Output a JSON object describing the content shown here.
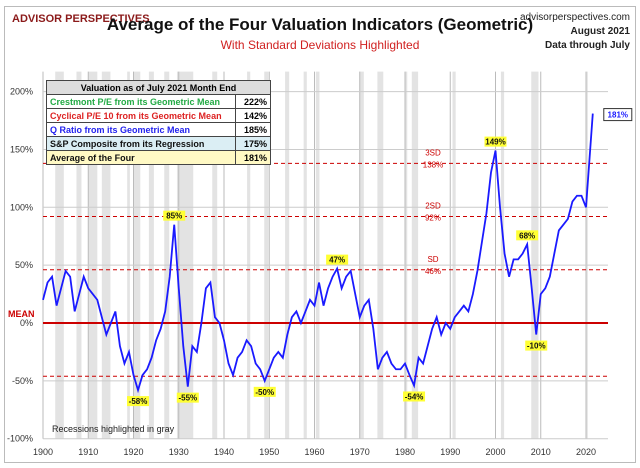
{
  "header": {
    "logo": "ADVISOR PERSPECTIVES",
    "title": "Average of the Four Valuation Indicators (Geometric)",
    "subtitle": "With Standard Deviations Highlighted",
    "site": "advisorperspectives.com",
    "date": "August 2021",
    "through": "Data through July"
  },
  "table": {
    "title": "Valuation as of July 2021  Month End",
    "rows": [
      {
        "label": "Crestmont P/E from its Geometric Mean",
        "value": "222%",
        "color": "#22aa44",
        "bg": "#ffffff"
      },
      {
        "label": "Cyclical P/E 10 from its Geometric Mean",
        "value": "142%",
        "color": "#dd2222",
        "bg": "#ffffff"
      },
      {
        "label": "Q Ratio from its Geometric Mean",
        "value": "185%",
        "color": "#2222ee",
        "bg": "#ffffff"
      },
      {
        "label": "S&P Composite from its Regression",
        "value": "175%",
        "color": "#111111",
        "bg": "#dbeef4"
      },
      {
        "label": "Average of the Four",
        "value": "181%",
        "color": "#111111",
        "bg": "#fff9c4"
      }
    ]
  },
  "chart_data": {
    "type": "line",
    "xlim": [
      1900,
      2025
    ],
    "ylim": [
      -100,
      200
    ],
    "x_ticks": [
      "1900",
      "1910",
      "1920",
      "1930",
      "1940",
      "1950",
      "1960",
      "1970",
      "1980",
      "1990",
      "2000",
      "2010",
      "2020"
    ],
    "y_ticks": [
      "200%",
      "150%",
      "100%",
      "50%",
      "0%",
      "-50%",
      "-100%"
    ],
    "mean_label": "MEAN",
    "sd_lines": [
      {
        "value": 138,
        "label1": "3SD",
        "label2": "138%"
      },
      {
        "value": 92,
        "label1": "2SD",
        "label2": "92%"
      },
      {
        "value": 46,
        "label1": "SD",
        "label2": "46%"
      },
      {
        "value": -46,
        "label1": "",
        "label2": ""
      }
    ],
    "series": [
      {
        "color": "#1a1aff",
        "x": [
          1900,
          1901,
          1902,
          1903,
          1904,
          1905,
          1906,
          1907,
          1908,
          1909,
          1910,
          1911,
          1912,
          1913,
          1914,
          1915,
          1916,
          1917,
          1918,
          1919,
          1920,
          1921,
          1922,
          1923,
          1924,
          1925,
          1926,
          1927,
          1928,
          1929,
          1930,
          1931,
          1932,
          1933,
          1934,
          1935,
          1936,
          1937,
          1938,
          1939,
          1940,
          1941,
          1942,
          1943,
          1944,
          1945,
          1946,
          1947,
          1948,
          1949,
          1950,
          1951,
          1952,
          1953,
          1954,
          1955,
          1956,
          1957,
          1958,
          1959,
          1960,
          1961,
          1962,
          1963,
          1964,
          1965,
          1966,
          1967,
          1968,
          1969,
          1970,
          1971,
          1972,
          1973,
          1974,
          1975,
          1976,
          1977,
          1978,
          1979,
          1980,
          1981,
          1982,
          1983,
          1984,
          1985,
          1986,
          1987,
          1988,
          1989,
          1990,
          1991,
          1992,
          1993,
          1994,
          1995,
          1996,
          1997,
          1998,
          1999,
          2000,
          2001,
          2002,
          2003,
          2004,
          2005,
          2006,
          2007,
          2008,
          2009,
          2010,
          2011,
          2012,
          2013,
          2014,
          2015,
          2016,
          2017,
          2018,
          2019,
          2020,
          2021.5
        ],
        "y": [
          20,
          35,
          40,
          15,
          30,
          45,
          40,
          10,
          25,
          40,
          30,
          25,
          20,
          5,
          -10,
          0,
          10,
          -20,
          -35,
          -25,
          -45,
          -58,
          -45,
          -40,
          -30,
          -15,
          -5,
          10,
          40,
          85,
          30,
          -20,
          -55,
          -20,
          -25,
          0,
          30,
          35,
          5,
          0,
          -15,
          -35,
          -45,
          -30,
          -25,
          -15,
          -20,
          -35,
          -40,
          -50,
          -40,
          -30,
          -25,
          -30,
          -10,
          5,
          10,
          0,
          10,
          20,
          15,
          35,
          15,
          30,
          40,
          47,
          30,
          40,
          45,
          25,
          5,
          15,
          20,
          -5,
          -40,
          -30,
          -25,
          -35,
          -40,
          -40,
          -35,
          -45,
          -54,
          -30,
          -35,
          -20,
          -5,
          5,
          -10,
          0,
          -5,
          5,
          10,
          15,
          10,
          25,
          45,
          70,
          95,
          130,
          149,
          100,
          60,
          40,
          55,
          55,
          60,
          68,
          30,
          -10,
          25,
          30,
          40,
          60,
          80,
          85,
          90,
          105,
          110,
          110,
          100,
          181
        ]
      }
    ],
    "annotations": [
      {
        "x": 1921,
        "y": -58,
        "text": "-58%"
      },
      {
        "x": 1929,
        "y": 85,
        "text": "85%"
      },
      {
        "x": 1932,
        "y": -55,
        "text": "-55%"
      },
      {
        "x": 1949,
        "y": -50,
        "text": "-50%"
      },
      {
        "x": 1965,
        "y": 47,
        "text": "47%"
      },
      {
        "x": 1982,
        "y": -54,
        "text": "-54%"
      },
      {
        "x": 2000,
        "y": 149,
        "text": "149%"
      },
      {
        "x": 2007,
        "y": 68,
        "text": "68%"
      },
      {
        "x": 2009,
        "y": -10,
        "text": "-10%"
      },
      {
        "x": 2021.5,
        "y": 181,
        "text": "181%"
      }
    ],
    "recessions": [
      [
        1902.7,
        1904.6
      ],
      [
        1907.4,
        1908.5
      ],
      [
        1910,
        1912
      ],
      [
        1913,
        1914.9
      ],
      [
        1918.6,
        1919.2
      ],
      [
        1920,
        1921.5
      ],
      [
        1923.4,
        1924.5
      ],
      [
        1926.8,
        1927.9
      ],
      [
        1929.6,
        1933.2
      ],
      [
        1937.4,
        1938.5
      ],
      [
        1945.1,
        1945.8
      ],
      [
        1948.9,
        1949.8
      ],
      [
        1953.5,
        1954.4
      ],
      [
        1957.6,
        1958.3
      ],
      [
        1960.3,
        1961.1
      ],
      [
        1969.9,
        1970.9
      ],
      [
        1973.9,
        1975.2
      ],
      [
        1980,
        1980.5
      ],
      [
        1981.5,
        1982.9
      ],
      [
        1990.5,
        1991.2
      ],
      [
        2001.2,
        2001.9
      ],
      [
        2007.9,
        2009.5
      ],
      [
        2020.1,
        2020.4
      ]
    ],
    "note": "Recessions highlighted in gray"
  }
}
